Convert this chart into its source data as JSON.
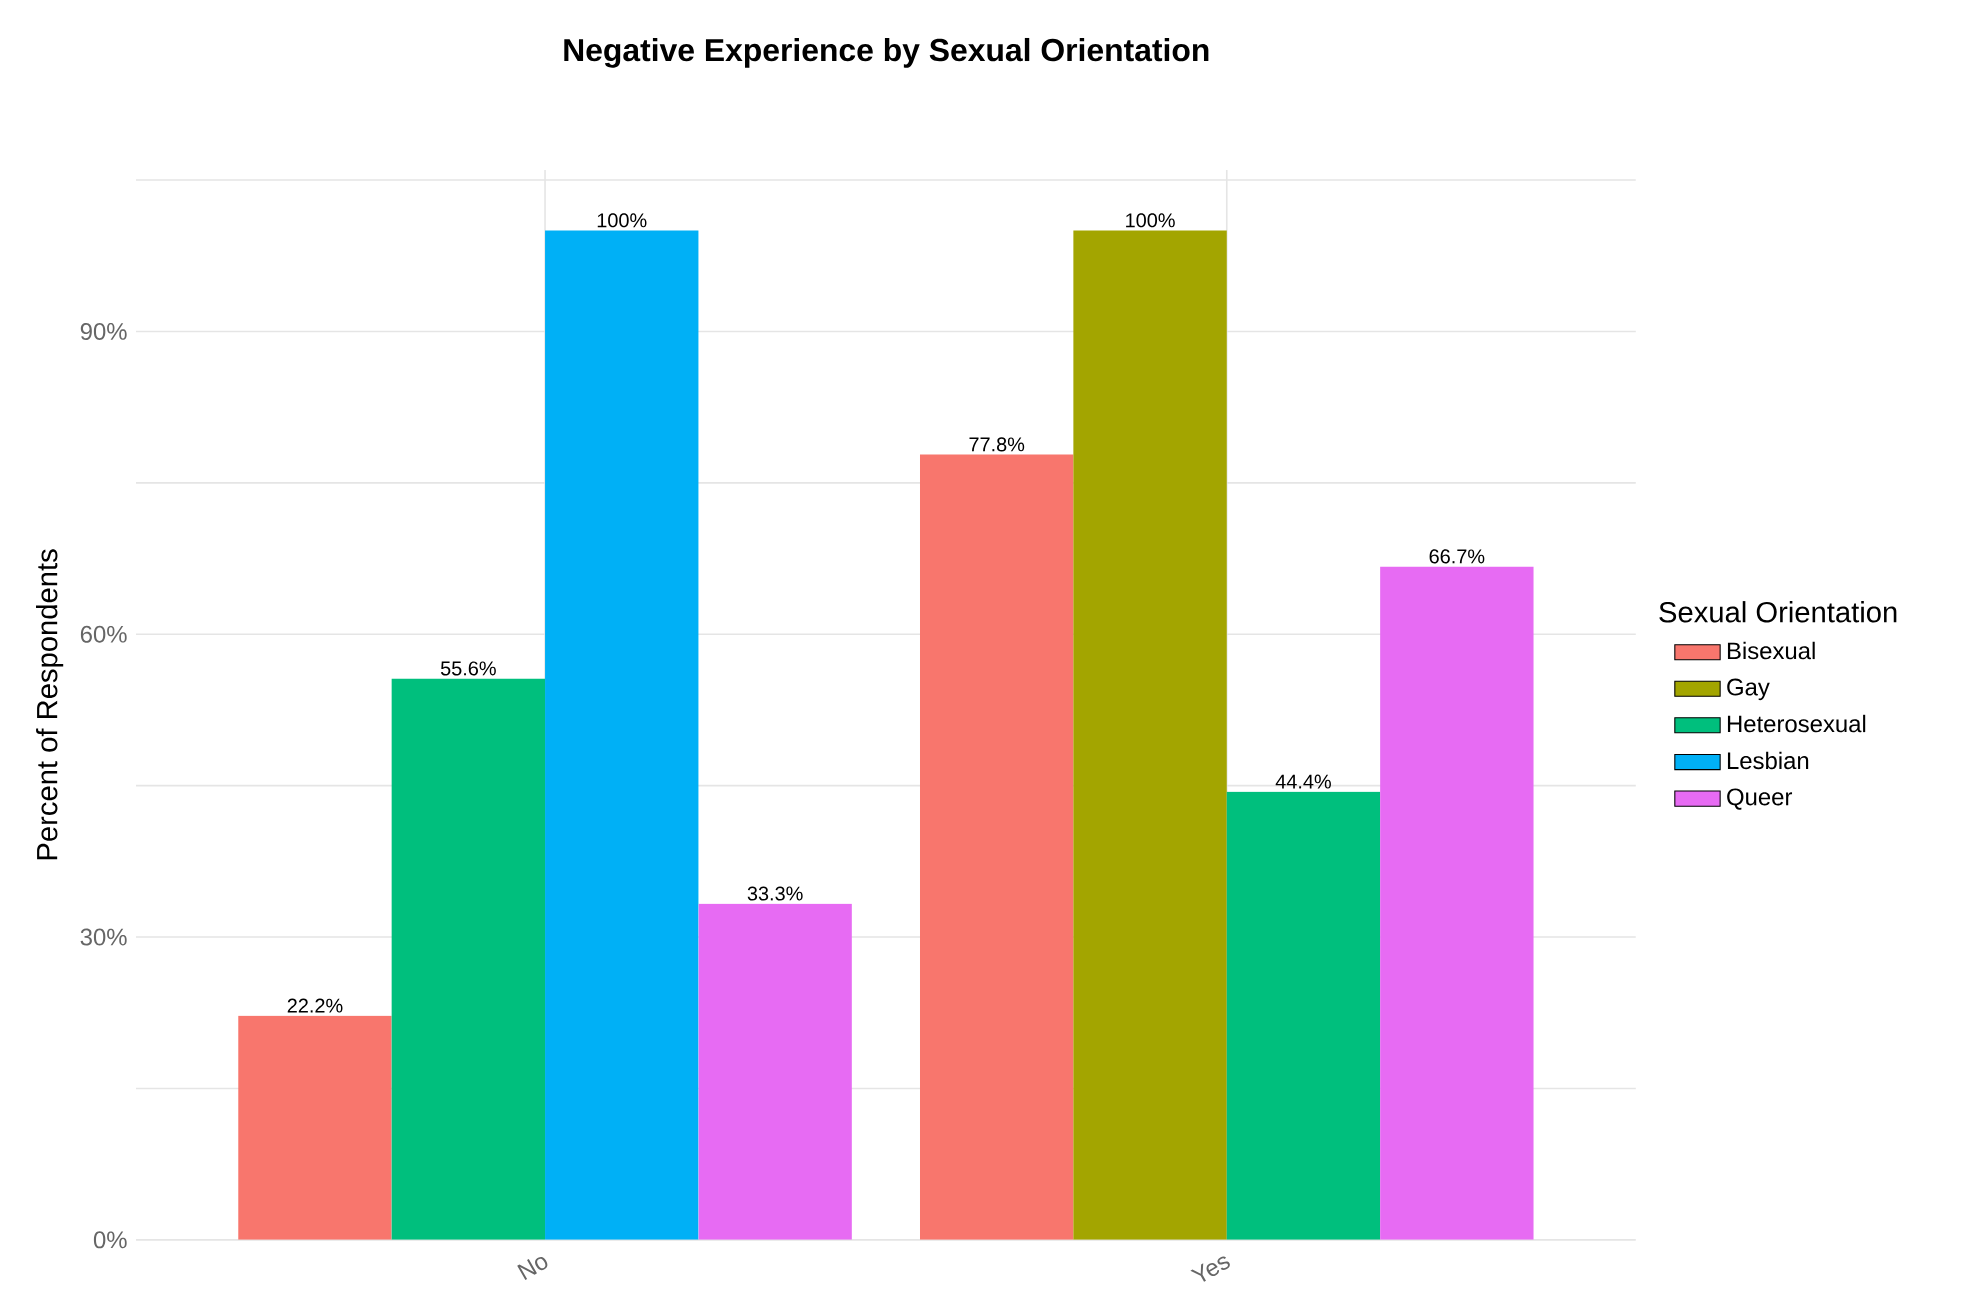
{
  "chart_data": {
    "type": "bar",
    "title": "Negative Experience by Sexual Orientation",
    "xlabel": null,
    "ylabel": "Percent of Respondents",
    "legend_title": "Sexual Orientation",
    "categories": [
      "No",
      "Yes"
    ],
    "series": [
      {
        "name": "Bisexual",
        "color": "#f8766d",
        "values": [
          22.2,
          77.8
        ],
        "value_labels": [
          "22.2%",
          "77.8%"
        ]
      },
      {
        "name": "Gay",
        "color": "#a3a500",
        "values": [
          null,
          100
        ],
        "value_labels": [
          null,
          "100%"
        ]
      },
      {
        "name": "Heterosexual",
        "color": "#00bf7d",
        "values": [
          55.6,
          44.4
        ],
        "value_labels": [
          "55.6%",
          "44.4%"
        ]
      },
      {
        "name": "Lesbian",
        "color": "#00b0f6",
        "values": [
          100,
          null
        ],
        "value_labels": [
          "100%",
          null
        ]
      },
      {
        "name": "Queer",
        "color": "#e76bf3",
        "values": [
          33.3,
          66.7
        ],
        "value_labels": [
          "33.3%",
          "66.7%"
        ]
      }
    ],
    "ylim": [
      0,
      106
    ],
    "yticks": [
      {
        "value": 0,
        "label": "0%"
      },
      {
        "value": 15,
        "label": null
      },
      {
        "value": 30,
        "label": "30%"
      },
      {
        "value": 45,
        "label": null
      },
      {
        "value": 60,
        "label": "60%"
      },
      {
        "value": 75,
        "label": null
      },
      {
        "value": 90,
        "label": "90%"
      },
      {
        "value": 105,
        "label": null
      }
    ],
    "grid": true,
    "legend": "right"
  }
}
